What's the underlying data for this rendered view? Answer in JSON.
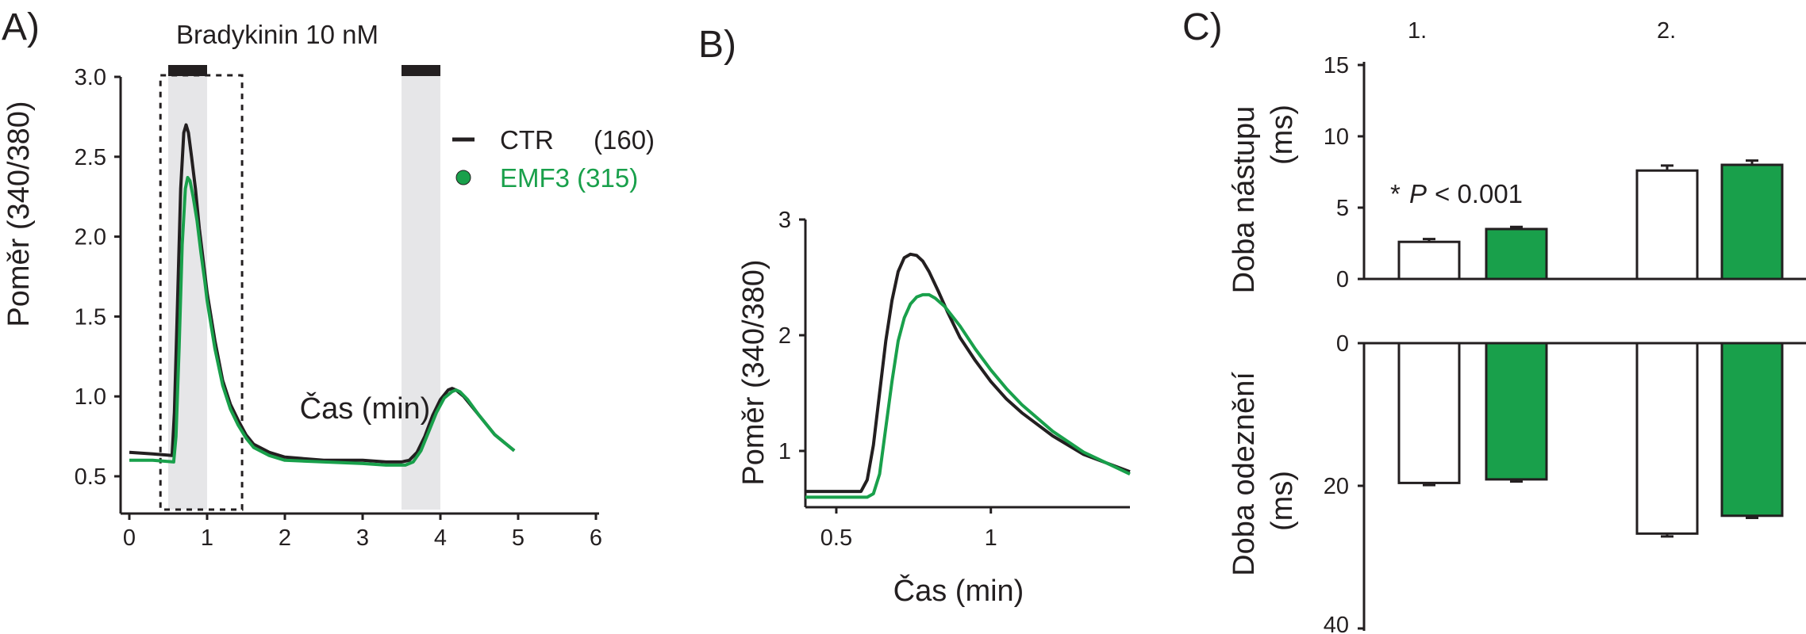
{
  "panels": {
    "a": "A)",
    "b": "B)",
    "c": "C)"
  },
  "colors": {
    "ctr": "#231f20",
    "emf3": "#19a04b",
    "band": "#e6e6e8"
  },
  "stimulus_label": "Bradykinin 10 nM",
  "legend": {
    "ctr": "CTR",
    "ctr_n": "(160)",
    "emf3": "EMF3 (315)"
  },
  "annotation": {
    "star": "*",
    "p": "P",
    "rest": "< 0.001"
  },
  "chart_data": [
    {
      "panel": "A)",
      "type": "line",
      "xlabel": "Čas (min)",
      "ylabel": "Poměr (340/380)",
      "xlim": [
        0,
        6
      ],
      "ylim": [
        0.3,
        3.0
      ],
      "xticks": [
        "0",
        "1",
        "2",
        "3",
        "4",
        "5",
        "6"
      ],
      "yticks": [
        "0.5",
        "1.0",
        "1.5",
        "2.0",
        "2.5",
        "3.0"
      ],
      "stimulus_intervals": [
        [
          0.5,
          1.0
        ],
        [
          3.5,
          4.0
        ]
      ],
      "zoom_box": [
        0.4,
        1.45
      ],
      "series": [
        {
          "name": "CTR (160)",
          "color": "#231f20",
          "x": [
            0,
            0.3,
            0.55,
            0.58,
            0.62,
            0.66,
            0.7,
            0.73,
            0.76,
            0.8,
            0.85,
            0.9,
            0.95,
            1.0,
            1.1,
            1.2,
            1.3,
            1.4,
            1.5,
            1.6,
            1.8,
            2.0,
            2.5,
            3.0,
            3.3,
            3.5,
            3.6,
            3.7,
            3.8,
            3.9,
            4.0,
            4.1,
            4.15,
            4.2,
            4.3,
            4.5,
            4.7,
            4.95
          ],
          "y": [
            0.65,
            0.64,
            0.63,
            0.9,
            1.6,
            2.3,
            2.65,
            2.7,
            2.65,
            2.5,
            2.3,
            2.05,
            1.85,
            1.65,
            1.35,
            1.1,
            0.95,
            0.85,
            0.76,
            0.7,
            0.65,
            0.62,
            0.6,
            0.6,
            0.59,
            0.59,
            0.6,
            0.65,
            0.75,
            0.88,
            0.98,
            1.04,
            1.05,
            1.04,
            1.0,
            0.88,
            0.76,
            0.66
          ]
        },
        {
          "name": "EMF3 (315)",
          "color": "#19a04b",
          "x": [
            0,
            0.3,
            0.57,
            0.6,
            0.64,
            0.68,
            0.72,
            0.75,
            0.78,
            0.82,
            0.87,
            0.92,
            0.97,
            1.0,
            1.1,
            1.2,
            1.3,
            1.4,
            1.5,
            1.6,
            1.8,
            2.0,
            2.5,
            3.0,
            3.3,
            3.55,
            3.65,
            3.75,
            3.85,
            3.95,
            4.05,
            4.15,
            4.2,
            4.25,
            4.35,
            4.5,
            4.7,
            4.95
          ],
          "y": [
            0.6,
            0.6,
            0.59,
            0.75,
            1.3,
            1.95,
            2.3,
            2.37,
            2.35,
            2.25,
            2.1,
            1.9,
            1.72,
            1.6,
            1.3,
            1.07,
            0.92,
            0.82,
            0.74,
            0.68,
            0.63,
            0.6,
            0.59,
            0.58,
            0.57,
            0.57,
            0.59,
            0.66,
            0.78,
            0.9,
            0.99,
            1.03,
            1.04,
            1.03,
            0.98,
            0.88,
            0.76,
            0.66
          ]
        }
      ]
    },
    {
      "panel": "B)",
      "type": "line",
      "xlabel": "Čas (min)",
      "ylabel": "Poměr (340/380)",
      "xlim": [
        0.4,
        1.45
      ],
      "ylim": [
        0.5,
        3.0
      ],
      "xticks": [
        "0.5",
        "1"
      ],
      "yticks": [
        "1",
        "2",
        "3"
      ],
      "series": [
        {
          "name": "CTR (160)",
          "color": "#231f20",
          "x": [
            0.4,
            0.58,
            0.6,
            0.62,
            0.64,
            0.66,
            0.68,
            0.7,
            0.72,
            0.74,
            0.76,
            0.78,
            0.8,
            0.83,
            0.86,
            0.9,
            0.95,
            1.0,
            1.05,
            1.1,
            1.2,
            1.3,
            1.45
          ],
          "y": [
            0.65,
            0.65,
            0.75,
            1.05,
            1.5,
            1.95,
            2.3,
            2.55,
            2.67,
            2.7,
            2.69,
            2.64,
            2.55,
            2.38,
            2.2,
            1.98,
            1.78,
            1.6,
            1.45,
            1.33,
            1.13,
            0.97,
            0.82
          ]
        },
        {
          "name": "EMF3 (315)",
          "color": "#19a04b",
          "x": [
            0.4,
            0.6,
            0.62,
            0.64,
            0.66,
            0.68,
            0.7,
            0.72,
            0.74,
            0.76,
            0.78,
            0.8,
            0.82,
            0.85,
            0.9,
            0.95,
            1.0,
            1.05,
            1.1,
            1.2,
            1.3,
            1.45
          ],
          "y": [
            0.6,
            0.6,
            0.63,
            0.8,
            1.2,
            1.6,
            1.95,
            2.15,
            2.27,
            2.33,
            2.35,
            2.35,
            2.32,
            2.25,
            2.08,
            1.88,
            1.7,
            1.54,
            1.4,
            1.17,
            0.99,
            0.8
          ]
        }
      ]
    },
    {
      "panel": "C)",
      "type": "bar",
      "group_labels": [
        "1.",
        "2."
      ],
      "top": {
        "ylabel": "Doba nástupu (ms)",
        "ylim": [
          0,
          15
        ],
        "yticks": [
          "0",
          "5",
          "10",
          "15"
        ],
        "series": [
          {
            "name": "CTR (160)",
            "color": "#ffffff",
            "values": [
              2.6,
              7.6
            ],
            "errors": [
              0.2,
              0.35
            ]
          },
          {
            "name": "EMF3 (315)",
            "color": "#19a04b",
            "values": [
              3.5,
              8.0
            ],
            "errors": [
              0.15,
              0.3
            ]
          }
        ]
      },
      "bottom": {
        "ylabel": "Doba odeznění (ms)",
        "ylim": [
          0,
          40
        ],
        "inverted": true,
        "yticks": [
          "0",
          "20",
          "40"
        ],
        "series": [
          {
            "name": "CTR (160)",
            "color": "#ffffff",
            "values": [
              19.6,
              26.7
            ],
            "errors": [
              0.3,
              0.4
            ]
          },
          {
            "name": "EMF3 (315)",
            "color": "#19a04b",
            "values": [
              19.1,
              24.2
            ],
            "errors": [
              0.3,
              0.3
            ]
          }
        ]
      }
    }
  ]
}
